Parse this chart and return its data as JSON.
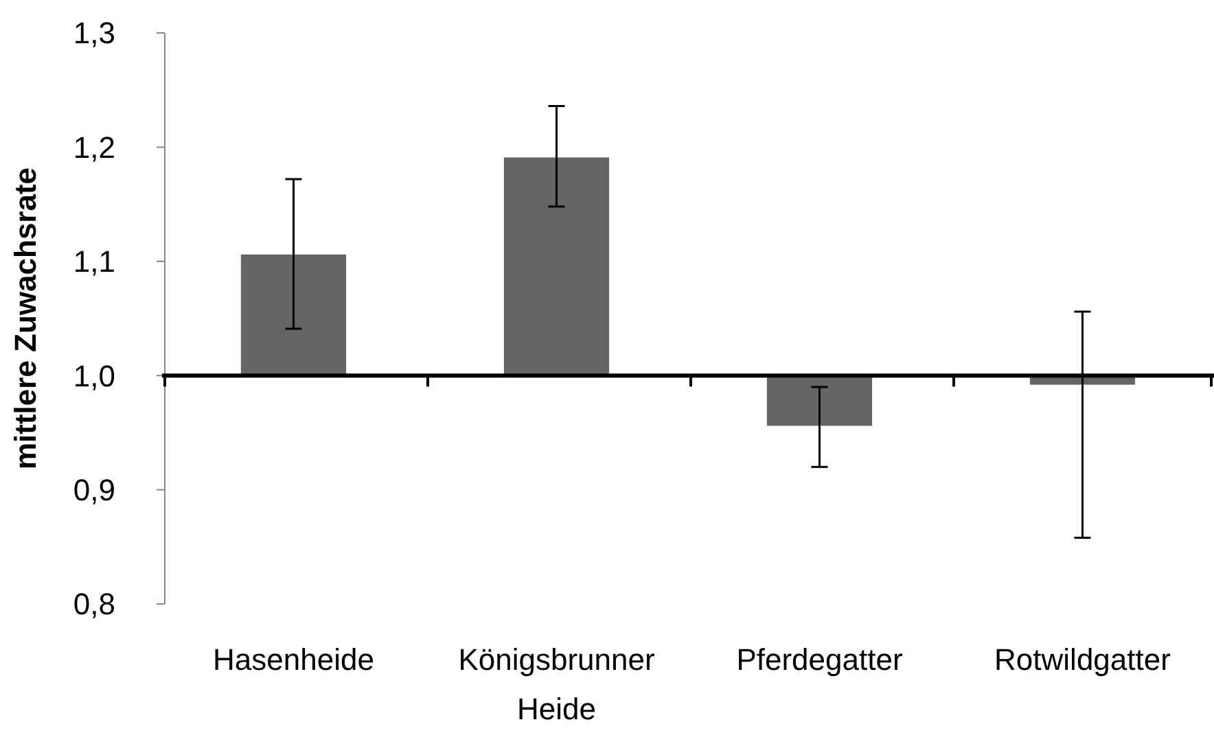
{
  "chart_data": {
    "type": "bar",
    "ylabel": "mittlere Zuwachsrate",
    "categories": [
      "Hasenheide",
      "Königsbrunner Heide",
      "Pferdegatter",
      "Rotwildgatter"
    ],
    "base": [
      1,
      1,
      1,
      1
    ],
    "values": [
      0.106,
      0.191,
      -0.044,
      -0.008
    ],
    "errors": [
      [
        1.041,
        1.172
      ],
      [
        1.148,
        1.236
      ],
      [
        0.92,
        0.99
      ],
      [
        0.858,
        1.056
      ]
    ],
    "color": "#646464",
    "ylim": [
      0.8,
      1.3
    ],
    "yticks": [
      {
        "value": 0.8,
        "label": "0,8"
      },
      {
        "value": 0.9,
        "label": "0,9"
      },
      {
        "value": 1.0,
        "label": "1,0"
      },
      {
        "value": 1.1,
        "label": "1,1"
      },
      {
        "value": 1.2,
        "label": "1,2"
      },
      {
        "value": 1.3,
        "label": "1,3"
      }
    ]
  }
}
